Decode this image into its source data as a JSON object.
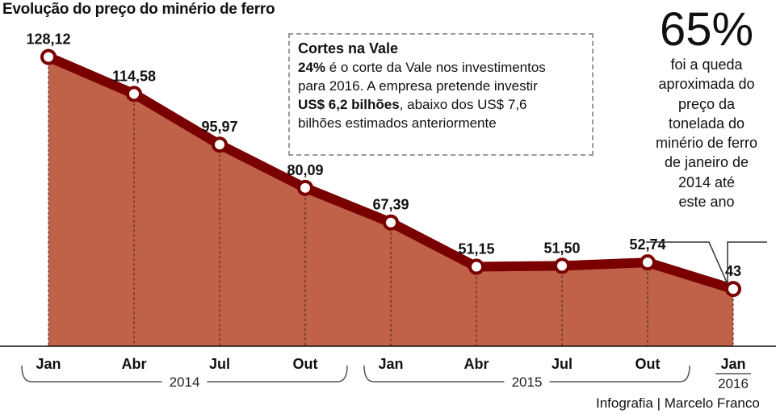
{
  "title": "Evolução do preço do minério de ferro",
  "note": {
    "heading": "Cortes na Vale",
    "l1_bold": "24%",
    "l1_rest": " é o corte da Vale nos investimentos",
    "l2": "para 2016. A empresa pretende investir",
    "l3_bold": "US$ 6,2 bilhões",
    "l3_rest": ", abaixo dos US$ 7,6",
    "l4": "bilhões estimados anteriormente"
  },
  "highlight": {
    "value": "65%",
    "lines": [
      "foi a queda",
      "aproximada do",
      "preço da",
      "tonelada do",
      "minério de ferro",
      "de janeiro de",
      "2014 até",
      "este ano"
    ]
  },
  "credit": "Infografia | Marcelo Franco",
  "colors": {
    "line": "#7a0000",
    "fill": "#bf6249",
    "point": "#ffffff"
  },
  "chart_data": {
    "type": "area",
    "categories": [
      "Jan",
      "Abr",
      "Jul",
      "Out",
      "Jan",
      "Abr",
      "Jul",
      "Out",
      "Jan"
    ],
    "values": [
      128.12,
      114.58,
      95.97,
      80.09,
      67.39,
      51.15,
      51.5,
      52.74,
      43
    ],
    "data_labels": [
      "128,12",
      "114,58",
      "95,97",
      "80,09",
      "67,39",
      "51,15",
      "51,50",
      "52,74",
      "43"
    ],
    "year_groups": [
      {
        "label": "2014",
        "start": 0,
        "end": 3
      },
      {
        "label": "2015",
        "start": 4,
        "end": 7
      },
      {
        "label": "2016",
        "start": 8,
        "end": 8
      }
    ],
    "ylim": [
      22,
      136
    ],
    "grid": false,
    "xlabel": "",
    "ylabel": ""
  }
}
